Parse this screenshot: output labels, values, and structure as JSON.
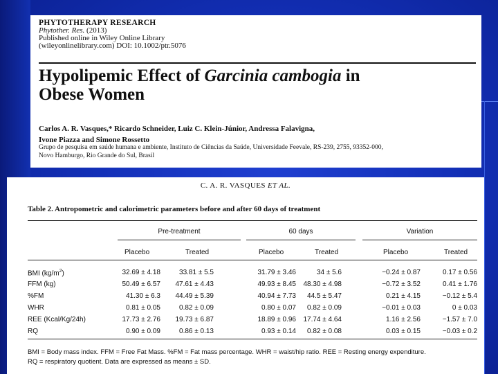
{
  "header": {
    "journal": "PHYTOTHERAPY RESEARCH",
    "journal_abbrev": "Phytother. Res.",
    "year": "(2013)",
    "published_line": "Published online in Wiley Online Library",
    "doi_line": "(wileyonlinelibrary.com) DOI: 10.1002/ptr.5076",
    "title_prefix": "Hypolipemic Effect of ",
    "title_species": "Garcinia cambogia",
    "title_suffix": " in",
    "title_line2": "Obese Women",
    "authors_line1": "Carlos A. R. Vasques,* Ricardo Schneider, Luiz C. Klein-Júnior, Andressa Falavigna,",
    "authors_line2": "Ivone Piazza and Simone Rossetto",
    "affiliation_line1": "Grupo de pesquisa em saúde humana e ambiente, Instituto de Ciências da Saúde, Universidade Feevale, RS-239, 2755, 93352-000,",
    "affiliation_line2": "Novo Hamburgo, Rio Grande do Sul, Brasil"
  },
  "table": {
    "running_head_author": "C. A. R. VASQUES ",
    "running_head_etal": "ET AL.",
    "caption": "Table 2.  Antropometric and calorimetric parameters before and after 60 days of treatment",
    "groups": [
      "Pre-treatment",
      "60 days",
      "Variation"
    ],
    "subheaders": [
      "Placebo",
      "Treated",
      "Placebo",
      "Treated",
      "Placebo",
      "Treated"
    ],
    "rows": [
      {
        "label": "BMI (kg/m",
        "sup": "2",
        "label_end": ")",
        "cells": [
          "32.69 ± 4.18",
          "33.81 ± 5.5",
          "31.79 ± 3.46",
          "34 ± 5.6",
          "−0.24 ± 0.87",
          "0.17 ± 0.56"
        ]
      },
      {
        "label": "FFM (kg)",
        "sup": "",
        "label_end": "",
        "cells": [
          "50.49 ± 6.57",
          "47.61 ± 4.43",
          "49.93 ± 8.45",
          "48.30 ± 4.98",
          "−0.72 ± 3.52",
          "0.41 ± 1.76"
        ]
      },
      {
        "label": "%FM",
        "sup": "",
        "label_end": "",
        "cells": [
          "41.30 ± 6.3",
          "44.49 ± 5.39",
          "40.94 ± 7.73",
          "44.5 ± 5.47",
          "0.21 ± 4.15",
          "−0.12 ± 5.4"
        ]
      },
      {
        "label": "WHR",
        "sup": "",
        "label_end": "",
        "cells": [
          "0.81 ± 0.05",
          "0.82 ± 0.09",
          "0.80 ± 0.07",
          "0.82 ± 0.09",
          "−0.01 ± 0.03",
          "0 ± 0.03"
        ]
      },
      {
        "label": "REE (Kcal/Kg/24h)",
        "sup": "",
        "label_end": "",
        "cells": [
          "17.73 ± 2.76",
          "19.73 ± 6.87",
          "18.89 ± 0.96",
          "17.74 ± 4.64",
          "1.16 ± 2.56",
          "−1.57 ± 7.0"
        ]
      },
      {
        "label": "RQ",
        "sup": "",
        "label_end": "",
        "cells": [
          "0.90 ± 0.09",
          "0.86 ± 0.13",
          "0.93 ± 0.14",
          "0.82 ± 0.08",
          "0.03 ± 0.15",
          "−0.03 ± 0.2"
        ]
      }
    ],
    "footnote_line1": "BMI = Body mass index. FFM = Free Fat Mass. %FM = Fat mass percentage. WHR = waist/hip ratio. REE = Resting energy expenditure.",
    "footnote_line2": "RQ = respiratory quotient. Data are expressed as means ± SD."
  },
  "colors": {
    "slide_background": "#1330b8",
    "panel_background": "#ffffff"
  }
}
